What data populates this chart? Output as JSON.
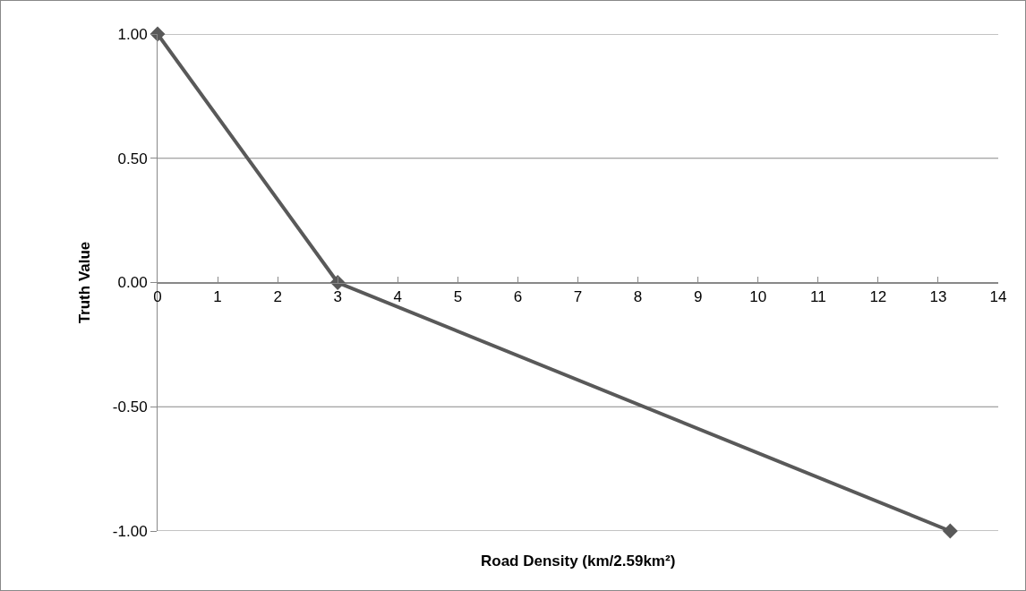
{
  "chart_data": {
    "type": "line",
    "xlabel": "Road Density (km/2.59km²)",
    "ylabel": "Truth Value",
    "x": [
      0,
      3,
      13.2
    ],
    "series": [
      {
        "color": "#595959",
        "values": [
          1,
          0,
          -1
        ]
      }
    ],
    "xlim": [
      0,
      14
    ],
    "xticks": [
      0,
      1,
      2,
      3,
      4,
      5,
      6,
      7,
      8,
      9,
      10,
      11,
      12,
      13,
      14
    ],
    "ylim": [
      -1,
      1
    ],
    "yticks": [
      {
        "value": -1,
        "label": "-1.00"
      },
      {
        "value": -0.5,
        "label": "-0.50"
      },
      {
        "value": 0,
        "label": "0.00"
      },
      {
        "value": 0.5,
        "label": "0.50"
      },
      {
        "value": 1,
        "label": "1.00"
      }
    ],
    "grid": "y",
    "marker": "diamond",
    "line_style": "solid"
  }
}
